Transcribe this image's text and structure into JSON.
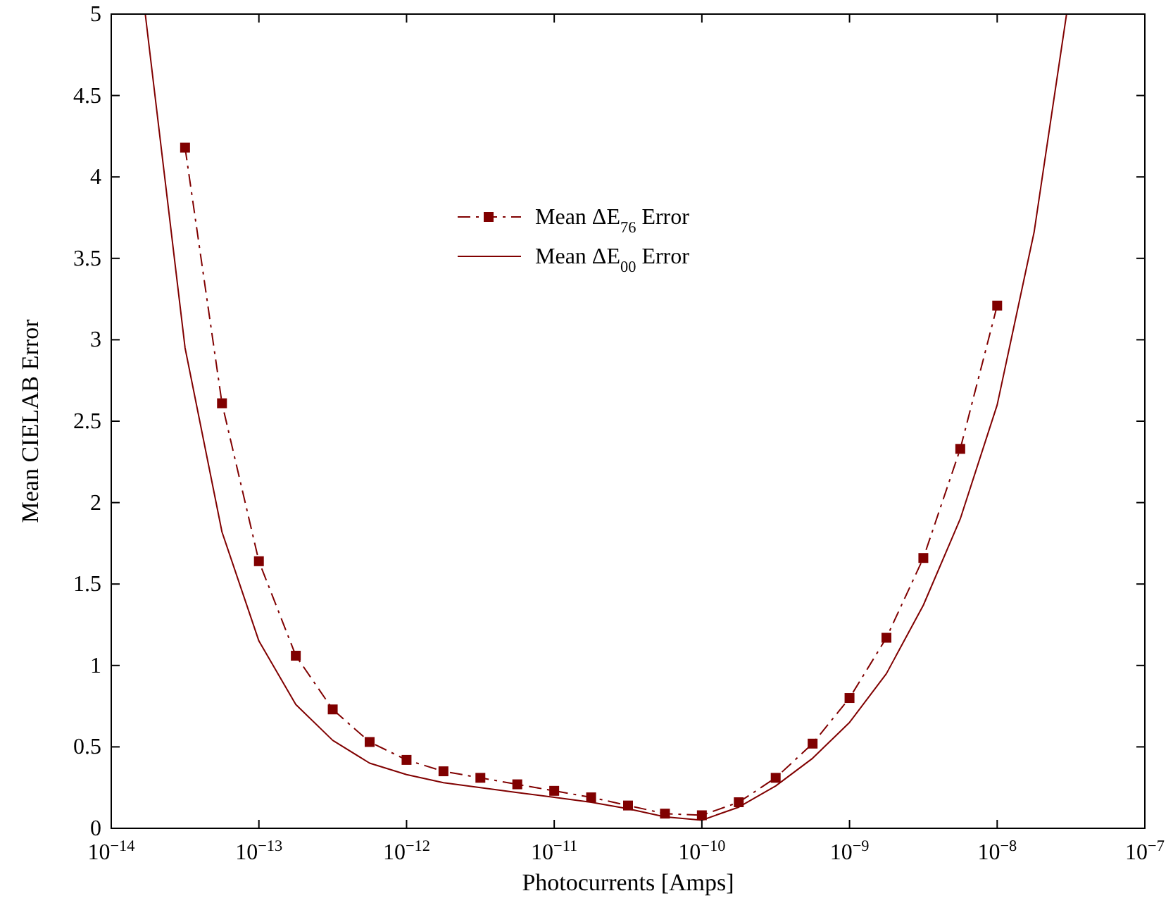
{
  "chart_data": {
    "type": "line",
    "xlabel": "Photocurrents [Amps]",
    "ylabel": "Mean CIELAB Error",
    "log": "x",
    "xlim": [
      1e-14,
      1e-07
    ],
    "xticks": [
      {
        "value": 1e-14,
        "label": "10$^{−14}$"
      },
      {
        "value": 1e-13,
        "label": "10$^{−13}$"
      },
      {
        "value": 1e-12,
        "label": "10$^{−12}$"
      },
      {
        "value": 1e-11,
        "label": "10$^{−11}$"
      },
      {
        "value": 1e-10,
        "label": "10$^{−10}$"
      },
      {
        "value": 1e-09,
        "label": "10$^{−9}$"
      },
      {
        "value": 1e-08,
        "label": "10$^{−8}$"
      },
      {
        "value": 1e-07,
        "label": "10$^{−7}$"
      }
    ],
    "ylim": [
      0,
      5
    ],
    "yticks": [
      0,
      0.5,
      1,
      1.5,
      2,
      2.5,
      3,
      3.5,
      4,
      4.5,
      5
    ],
    "grid": false,
    "legend": "top",
    "series": [
      {
        "name": "Mean ΔE$_{76}$ Error",
        "color": "#800000",
        "marker": "square",
        "line_style": "dashed",
        "x": [
          3.162e-14,
          5.623e-14,
          1e-13,
          1.778e-13,
          3.162e-13,
          5.623e-13,
          1e-12,
          1.778e-12,
          3.162e-12,
          5.623e-12,
          1e-11,
          1.778e-11,
          3.162e-11,
          5.623e-11,
          1e-10,
          1.778e-10,
          3.162e-10,
          5.623e-10,
          1e-09,
          1.778e-09,
          3.162e-09,
          5.623e-09,
          1e-08
        ],
        "values": [
          4.18,
          2.61,
          1.64,
          1.06,
          0.73,
          0.53,
          0.42,
          0.35,
          0.31,
          0.27,
          0.23,
          0.19,
          0.14,
          0.09,
          0.08,
          0.16,
          0.31,
          0.52,
          0.8,
          1.17,
          1.66,
          2.33,
          3.21
        ]
      },
      {
        "name": "Mean ΔE$_{00}$ Error",
        "color": "#800000",
        "marker": "none",
        "line_style": "solid",
        "x": [
          1.7e-14,
          3.162e-14,
          5.623e-14,
          1e-13,
          1.778e-13,
          3.162e-13,
          5.623e-13,
          1e-12,
          1.778e-12,
          3.162e-12,
          5.623e-12,
          1e-11,
          1.778e-11,
          3.162e-11,
          5.623e-11,
          1e-10,
          1.778e-10,
          3.162e-10,
          5.623e-10,
          1e-09,
          1.778e-09,
          3.162e-09,
          5.623e-09,
          1e-08,
          1.778e-08,
          2.95e-08
        ],
        "values": [
          5,
          2.95,
          1.82,
          1.15,
          0.76,
          0.54,
          0.4,
          0.33,
          0.28,
          0.25,
          0.22,
          0.19,
          0.16,
          0.12,
          0.07,
          0.05,
          0.13,
          0.26,
          0.43,
          0.65,
          0.95,
          1.37,
          1.9,
          2.6,
          3.66,
          5
        ]
      }
    ]
  }
}
